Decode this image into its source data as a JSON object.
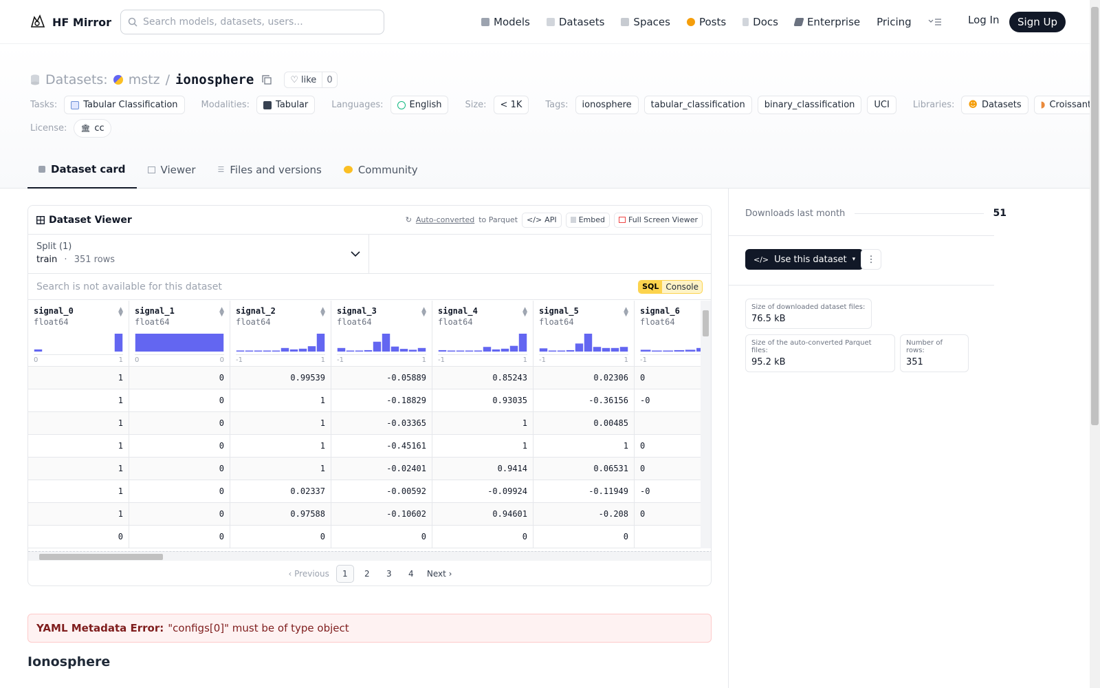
{
  "nav": {
    "brand": "HF Mirror",
    "search_placeholder": "Search models, datasets, users...",
    "links": [
      "Models",
      "Datasets",
      "Spaces",
      "Posts",
      "Docs",
      "Enterprise",
      "Pricing"
    ],
    "login": "Log In",
    "signup": "Sign Up"
  },
  "header": {
    "section": "Datasets:",
    "owner": "mstz",
    "separator": "/",
    "repo": "ionosphere",
    "like_label": "like",
    "like_count": "0",
    "tasks_label": "Tasks:",
    "task": "Tabular Classification",
    "modalities_label": "Modalities:",
    "modality": "Tabular",
    "languages_label": "Languages:",
    "language": "English",
    "size_label": "Size:",
    "size": "< 1K",
    "tags_label": "Tags:",
    "tags": [
      "ionosphere",
      "tabular_classification",
      "binary_classification",
      "UCI"
    ],
    "libraries_label": "Libraries:",
    "libraries": [
      "Datasets",
      "Croissant"
    ],
    "license_label": "License:",
    "license": "cc"
  },
  "tabs": [
    "Dataset card",
    "Viewer",
    "Files and versions",
    "Community"
  ],
  "viewer": {
    "title": "Dataset Viewer",
    "autoconverted": "Auto-converted",
    "to_parquet": "to Parquet",
    "api": "API",
    "embed": "Embed",
    "fullscreen": "Full Screen Viewer",
    "split_label": "Split (1)",
    "split_name": "train",
    "split_dot": "·",
    "split_rows": "351 rows",
    "search_na": "Search is not available for this dataset",
    "sql_key": "SQL",
    "sql_label": "Console",
    "columns": [
      {
        "name": "signal_0",
        "type": "float64",
        "min": "0",
        "max": "1",
        "hist": [
          0.12,
          0,
          0,
          0,
          0,
          0,
          0,
          0,
          0,
          1
        ]
      },
      {
        "name": "signal_1",
        "type": "float64",
        "min": "0",
        "max": "0",
        "hist": [
          1
        ]
      },
      {
        "name": "signal_2",
        "type": "float64",
        "min": "-1",
        "max": "1",
        "hist": [
          0.06,
          0.03,
          0.03,
          0.03,
          0.05,
          0.2,
          0.12,
          0.16,
          0.3,
          1
        ]
      },
      {
        "name": "signal_3",
        "type": "float64",
        "min": "-1",
        "max": "1",
        "hist": [
          0.2,
          0.05,
          0.05,
          0.08,
          0.55,
          1,
          0.28,
          0.15,
          0.1,
          0.2
        ]
      },
      {
        "name": "signal_4",
        "type": "float64",
        "min": "-1",
        "max": "1",
        "hist": [
          0.08,
          0.04,
          0.04,
          0.05,
          0.06,
          0.26,
          0.12,
          0.16,
          0.32,
          1
        ]
      },
      {
        "name": "signal_5",
        "type": "float64",
        "min": "-1",
        "max": "1",
        "hist": [
          0.18,
          0.04,
          0.04,
          0.08,
          0.45,
          1,
          0.26,
          0.2,
          0.2,
          0.26
        ]
      },
      {
        "name": "signal_6",
        "type": "float64",
        "min": "-1",
        "max": "",
        "hist": [
          0.1,
          0.04,
          0.04,
          0.08,
          0.1,
          0.2,
          0.4,
          0.26
        ]
      }
    ],
    "rows": [
      [
        "1",
        "0",
        "0.99539",
        "-0.05889",
        "0.85243",
        "0.02306",
        "0"
      ],
      [
        "1",
        "0",
        "1",
        "-0.18829",
        "0.93035",
        "-0.36156",
        "-0"
      ],
      [
        "1",
        "0",
        "1",
        "-0.03365",
        "1",
        "0.00485",
        ""
      ],
      [
        "1",
        "0",
        "1",
        "-0.45161",
        "1",
        "1",
        "0"
      ],
      [
        "1",
        "0",
        "1",
        "-0.02401",
        "0.9414",
        "0.06531",
        "0"
      ],
      [
        "1",
        "0",
        "0.02337",
        "-0.00592",
        "-0.09924",
        "-0.11949",
        "-0"
      ],
      [
        "1",
        "0",
        "0.97588",
        "-0.10602",
        "0.94601",
        "-0.208",
        "0"
      ],
      [
        "0",
        "0",
        "0",
        "0",
        "0",
        "0",
        ""
      ]
    ],
    "pager": {
      "prev": "Previous",
      "pages": [
        "1",
        "2",
        "3",
        "4"
      ],
      "current": "1",
      "next": "Next"
    }
  },
  "yaml_error": {
    "label": "YAML Metadata Error:",
    "message": "\"configs[0]\" must be of type object"
  },
  "card_heading": "Ionosphere",
  "sidebar": {
    "downloads_label": "Downloads last month",
    "downloads": "51",
    "use_button": "Use this dataset",
    "stats": [
      {
        "label": "Size of downloaded dataset files:",
        "value": "76.5 kB"
      },
      {
        "label": "Size of the auto-converted Parquet files:",
        "value": "95.2 kB"
      },
      {
        "label": "Number of rows:",
        "value": "351"
      }
    ]
  },
  "colors": {
    "accent": "#6366f1",
    "dark": "#111827",
    "error_bg": "#fef2f2",
    "sql_yellow": "#fcd34d"
  }
}
